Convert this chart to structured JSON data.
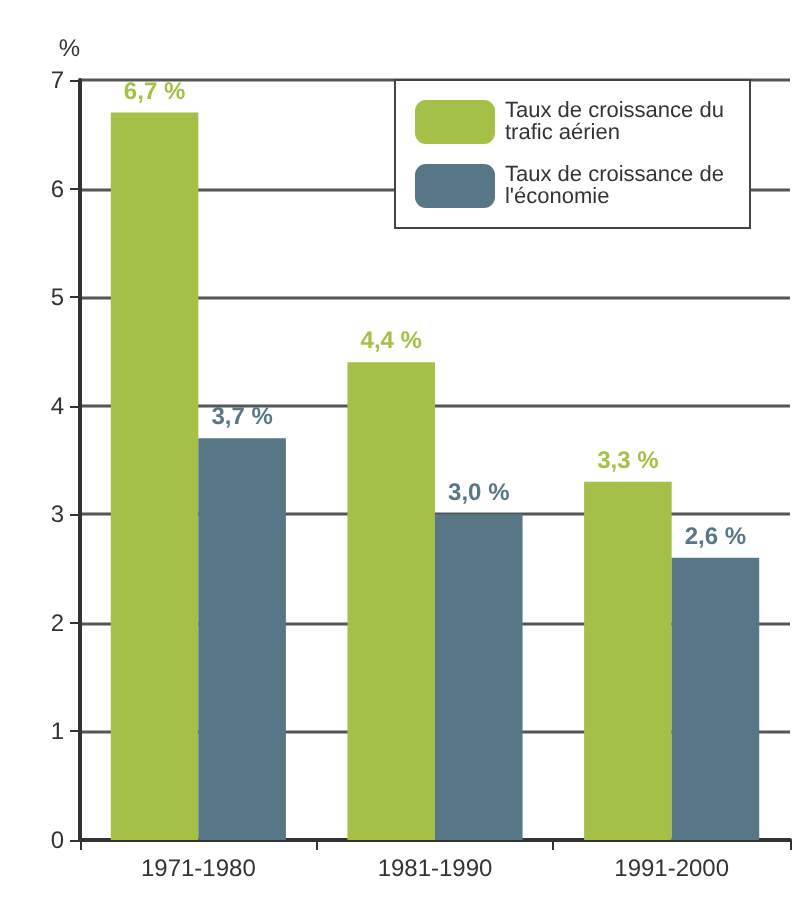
{
  "chart_data": {
    "type": "bar",
    "ylabel": "%",
    "categories": [
      "1971-1980",
      "1981-1990",
      "1991-2000"
    ],
    "series": [
      {
        "name": "Taux de croissance du trafic aérien",
        "color": "#a5c046",
        "values": [
          6.7,
          4.4,
          3.3
        ],
        "value_labels": [
          "6,7 %",
          "4,4 %",
          "3,3 %"
        ]
      },
      {
        "name": "Taux de croissance de l'économie",
        "color": "#577786",
        "values": [
          3.7,
          3.0,
          2.6
        ],
        "value_labels": [
          "3,7 %",
          "3,0 %",
          "2,6 %"
        ]
      }
    ],
    "ylim": [
      0,
      7
    ],
    "yticks": [
      0,
      1,
      2,
      3,
      4,
      5,
      6,
      7
    ],
    "grid": "y",
    "legend": "top right"
  }
}
